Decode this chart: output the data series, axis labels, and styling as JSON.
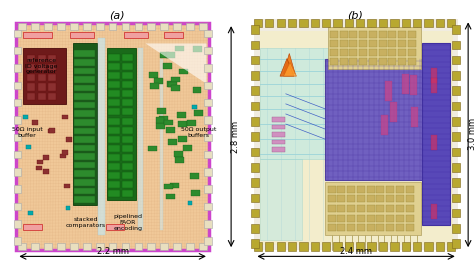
{
  "bg_color": "#ffffff",
  "title_a": "(a)",
  "title_b": "(b)",
  "title_fontsize": 8,
  "dim_fontsize": 6,
  "label_fontsize": 4.5,
  "chip_a": {
    "border_color": "#cc44cc",
    "border_lw": 2.5,
    "chip_bg": "#f0c898",
    "pad_bg": "#e8dfc0",
    "pad_border": "#aaaaaa",
    "dim_width": "2.2 mm",
    "dim_height": "2.8 mm"
  },
  "chip_b": {
    "pad_bg": "#b8a830",
    "pad_border": "#806820",
    "chip_bg": "#f0ece0",
    "dim_width": "2.4 mm",
    "dim_height": "3.0 mm"
  }
}
